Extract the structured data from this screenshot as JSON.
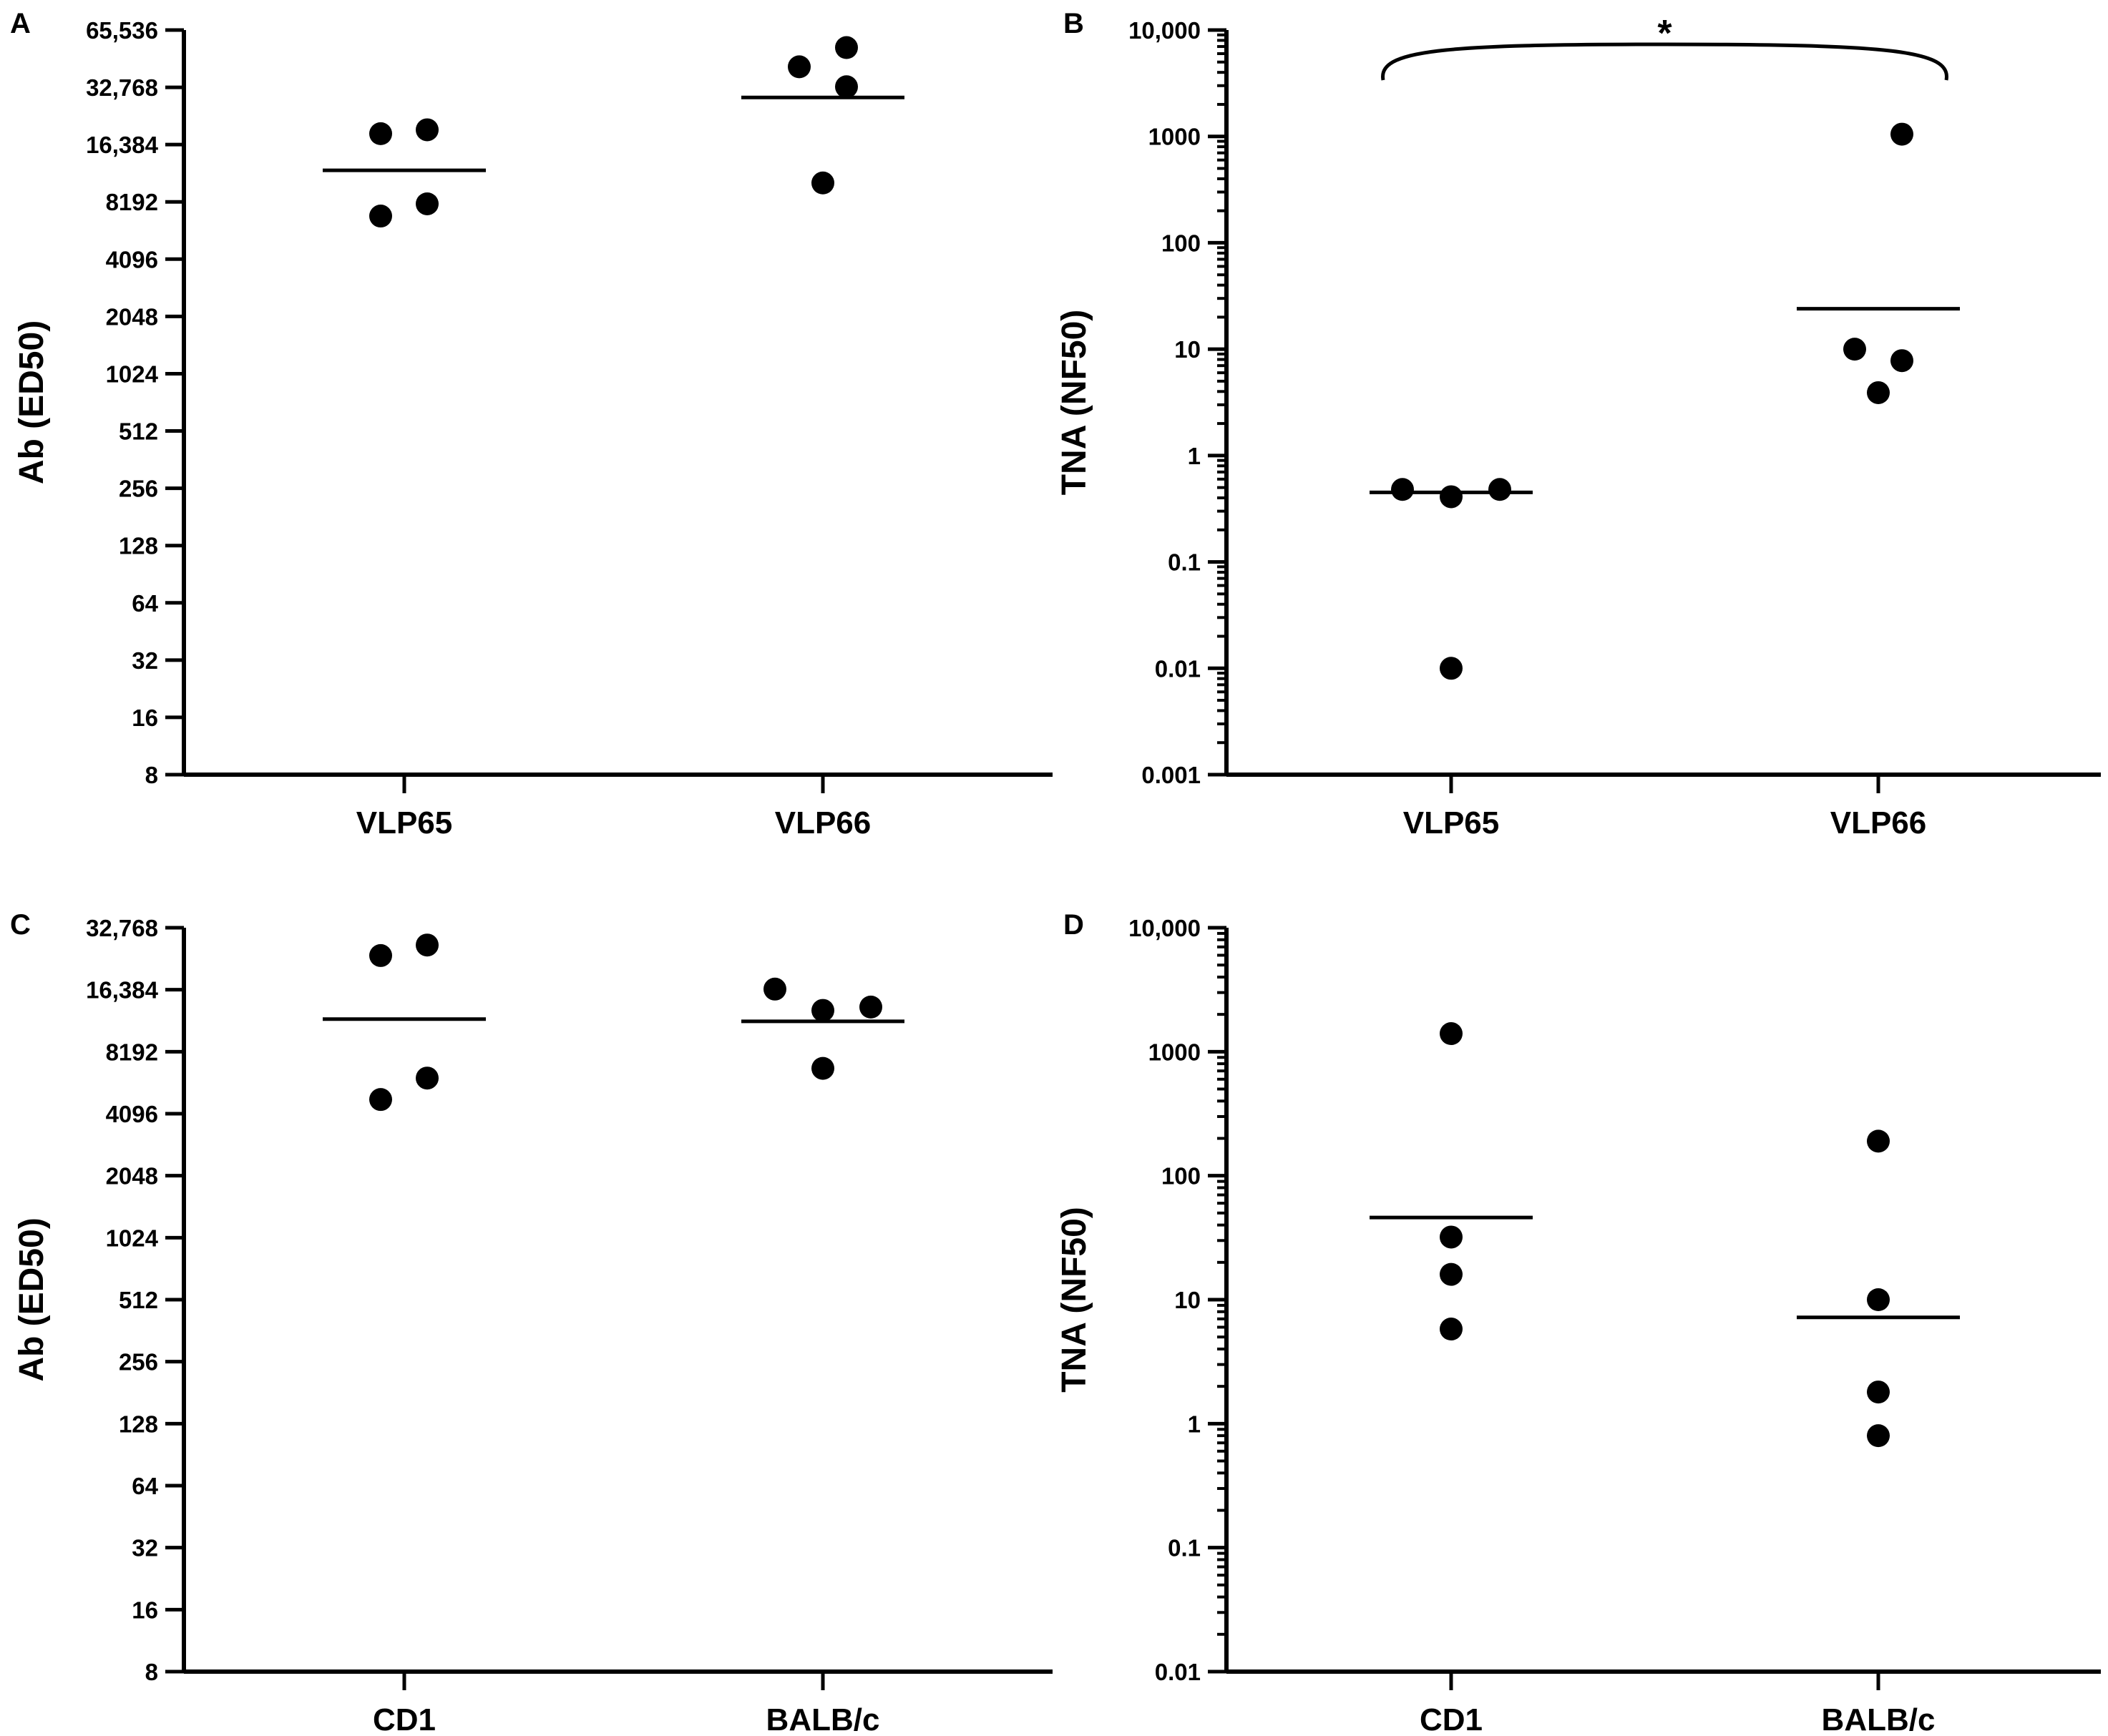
{
  "colors": {
    "marks": "#000000",
    "background": "#ffffff"
  },
  "chart_data": [
    {
      "type": "scatter",
      "panel": "A",
      "scale": "log2",
      "ylabel": "Ab (ED50)",
      "xlabel": "",
      "categories": [
        "VLP65",
        "VLP66"
      ],
      "yticks": [
        8,
        16,
        32,
        64,
        128,
        256,
        512,
        1024,
        2048,
        4096,
        8192,
        16384,
        32768,
        65536
      ],
      "ytick_labels": [
        "8",
        "16",
        "32",
        "64",
        "128",
        "256",
        "512",
        "1024",
        "2048",
        "4096",
        "8192",
        "16,384",
        "32,768",
        "65,536"
      ],
      "ylim": [
        8,
        65536
      ],
      "series": [
        {
          "name": "VLP65",
          "values": [
            18700,
            6900,
            8000,
            19600
          ],
          "mean": 12000
        },
        {
          "name": "VLP66",
          "values": [
            42000,
            10300,
            33000,
            53000
          ],
          "mean": 29000
        }
      ]
    },
    {
      "type": "scatter",
      "panel": "B",
      "scale": "log10",
      "ylabel": "TNA (NF50)",
      "xlabel": "",
      "categories": [
        "VLP65",
        "VLP66"
      ],
      "yticks": [
        0.001,
        0.01,
        0.1,
        1,
        10,
        100,
        1000,
        10000
      ],
      "ytick_labels": [
        "0.001",
        "0.01",
        "0.1",
        "1",
        "10",
        "100",
        "1000",
        "10,000"
      ],
      "ylim": [
        0.001,
        10000
      ],
      "series": [
        {
          "name": "VLP65",
          "values": [
            0.48,
            0.01,
            0.41,
            0.48
          ],
          "mean": 0.45
        },
        {
          "name": "VLP66",
          "values": [
            1050,
            10,
            3.9,
            7.8
          ],
          "mean": 24
        }
      ],
      "annotation": {
        "text": "*",
        "from": "VLP65",
        "to": "VLP66"
      }
    },
    {
      "type": "scatter",
      "panel": "C",
      "scale": "log2",
      "ylabel": "Ab (ED50)",
      "xlabel": "",
      "categories": [
        "CD1",
        "BALB/c"
      ],
      "yticks": [
        8,
        16,
        32,
        64,
        128,
        256,
        512,
        1024,
        2048,
        4096,
        8192,
        16384,
        32768
      ],
      "ytick_labels": [
        "8",
        "16",
        "32",
        "64",
        "128",
        "256",
        "512",
        "1024",
        "2048",
        "4096",
        "8192",
        "16,384",
        "32,768"
      ],
      "ylim": [
        8,
        32768
      ],
      "series": [
        {
          "name": "CD1",
          "values": [
            24000,
            4800,
            6100,
            27000
          ],
          "mean": 11800
        },
        {
          "name": "BALB/c",
          "values": [
            16500,
            6800,
            13000,
            13500
          ],
          "mean": 11500
        }
      ]
    },
    {
      "type": "scatter",
      "panel": "D",
      "scale": "log10",
      "ylabel": "TNA (NF50)",
      "xlabel": "",
      "categories": [
        "CD1",
        "BALB/c"
      ],
      "yticks": [
        0.01,
        0.1,
        1,
        10,
        100,
        1000,
        10000
      ],
      "ytick_labels": [
        "0.01",
        "0.1",
        "1",
        "10",
        "100",
        "1000",
        "10,000"
      ],
      "ylim": [
        0.01,
        10000
      ],
      "series": [
        {
          "name": "CD1",
          "values": [
            1400,
            32,
            16,
            5.8
          ],
          "mean": 46
        },
        {
          "name": "BALB/c",
          "values": [
            190,
            10,
            1.8,
            0.8
          ],
          "mean": 7.2
        }
      ]
    }
  ]
}
